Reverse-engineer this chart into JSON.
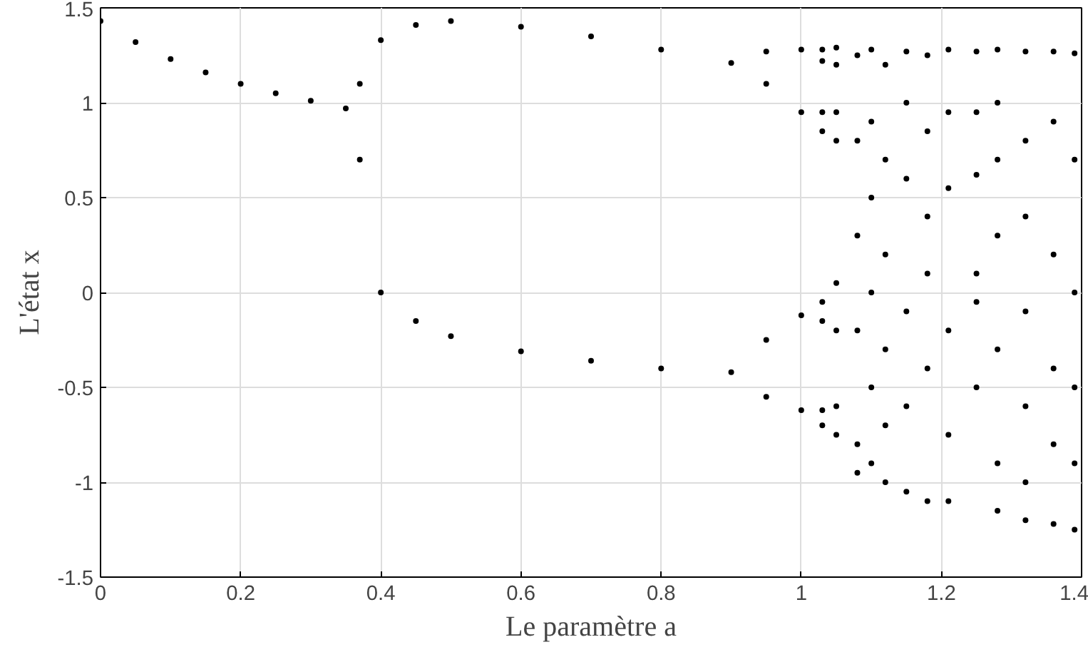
{
  "chart_data": {
    "type": "scatter",
    "xlabel": "Le paramètre a",
    "ylabel": "L'état x",
    "xlim": [
      0,
      1.4
    ],
    "ylim": [
      -1.5,
      1.5
    ],
    "xticks": [
      0,
      0.2,
      0.4,
      0.6,
      0.8,
      1,
      1.2,
      1.4
    ],
    "yticks": [
      -1.5,
      -1,
      -0.5,
      0,
      0.5,
      1,
      1.5
    ],
    "grid": true,
    "marker": "circle",
    "series": [
      {
        "color": "#000000",
        "x": [
          0,
          0.05,
          0.1,
          0.15,
          0.2,
          0.25,
          0.3,
          0.35,
          0.37,
          0.4,
          0.45,
          0.5,
          0.6,
          0.7,
          0.8,
          0.9,
          0.37,
          0.4,
          0.45,
          0.5,
          0.6,
          0.7,
          0.8,
          0.9,
          0.95,
          0.95,
          0.95,
          0.95,
          1.0,
          1.0,
          1.0,
          1.0,
          1.03,
          1.03,
          1.03,
          1.03,
          1.03,
          1.03,
          1.03,
          1.03,
          1.05,
          1.05,
          1.05,
          1.05,
          1.05,
          1.05,
          1.05,
          1.05,
          1.08,
          1.08,
          1.08,
          1.08,
          1.08,
          1.08,
          1.1,
          1.1,
          1.1,
          1.1,
          1.1,
          1.1,
          1.12,
          1.12,
          1.12,
          1.12,
          1.12,
          1.12,
          1.15,
          1.15,
          1.15,
          1.15,
          1.15,
          1.15,
          1.18,
          1.18,
          1.18,
          1.18,
          1.18,
          1.18,
          1.21,
          1.21,
          1.21,
          1.21,
          1.21,
          1.21,
          1.25,
          1.25,
          1.25,
          1.25,
          1.25,
          1.25,
          1.28,
          1.28,
          1.28,
          1.28,
          1.28,
          1.28,
          1.28,
          1.32,
          1.32,
          1.32,
          1.32,
          1.32,
          1.32,
          1.32,
          1.36,
          1.36,
          1.36,
          1.36,
          1.36,
          1.36,
          1.39,
          1.39,
          1.39,
          1.39,
          1.39,
          1.39
        ],
        "values": [
          1.43,
          1.32,
          1.23,
          1.16,
          1.1,
          1.05,
          1.01,
          0.97,
          1.1,
          1.33,
          1.41,
          1.43,
          1.4,
          1.35,
          1.28,
          1.21,
          0.7,
          0.0,
          -0.15,
          -0.23,
          -0.31,
          -0.36,
          -0.4,
          -0.42,
          1.27,
          1.1,
          -0.25,
          -0.55,
          1.28,
          0.95,
          -0.12,
          -0.62,
          1.28,
          1.22,
          0.95,
          0.85,
          -0.05,
          -0.15,
          -0.62,
          -0.7,
          1.29,
          1.2,
          0.95,
          0.8,
          0.05,
          -0.2,
          -0.6,
          -0.75,
          1.25,
          0.8,
          0.3,
          -0.2,
          -0.8,
          -0.95,
          1.28,
          0.9,
          0.5,
          0.0,
          -0.5,
          -0.9,
          1.2,
          0.7,
          0.2,
          -0.3,
          -0.7,
          -1.0,
          1.27,
          1.0,
          0.6,
          -0.1,
          -0.6,
          -1.05,
          1.25,
          0.85,
          0.4,
          0.1,
          -0.4,
          -1.1,
          1.28,
          0.95,
          0.55,
          -0.2,
          -0.75,
          -1.1,
          1.27,
          0.95,
          0.62,
          0.1,
          -0.05,
          -0.5,
          1.28,
          1.0,
          0.7,
          0.3,
          -0.3,
          -0.9,
          -1.15,
          1.27,
          0.8,
          0.4,
          -0.1,
          -0.6,
          -1.0,
          -1.2,
          1.27,
          0.9,
          0.2,
          -0.4,
          -0.8,
          -1.22,
          1.26,
          0.7,
          0.0,
          -0.5,
          -0.9,
          -1.25
        ]
      }
    ]
  }
}
